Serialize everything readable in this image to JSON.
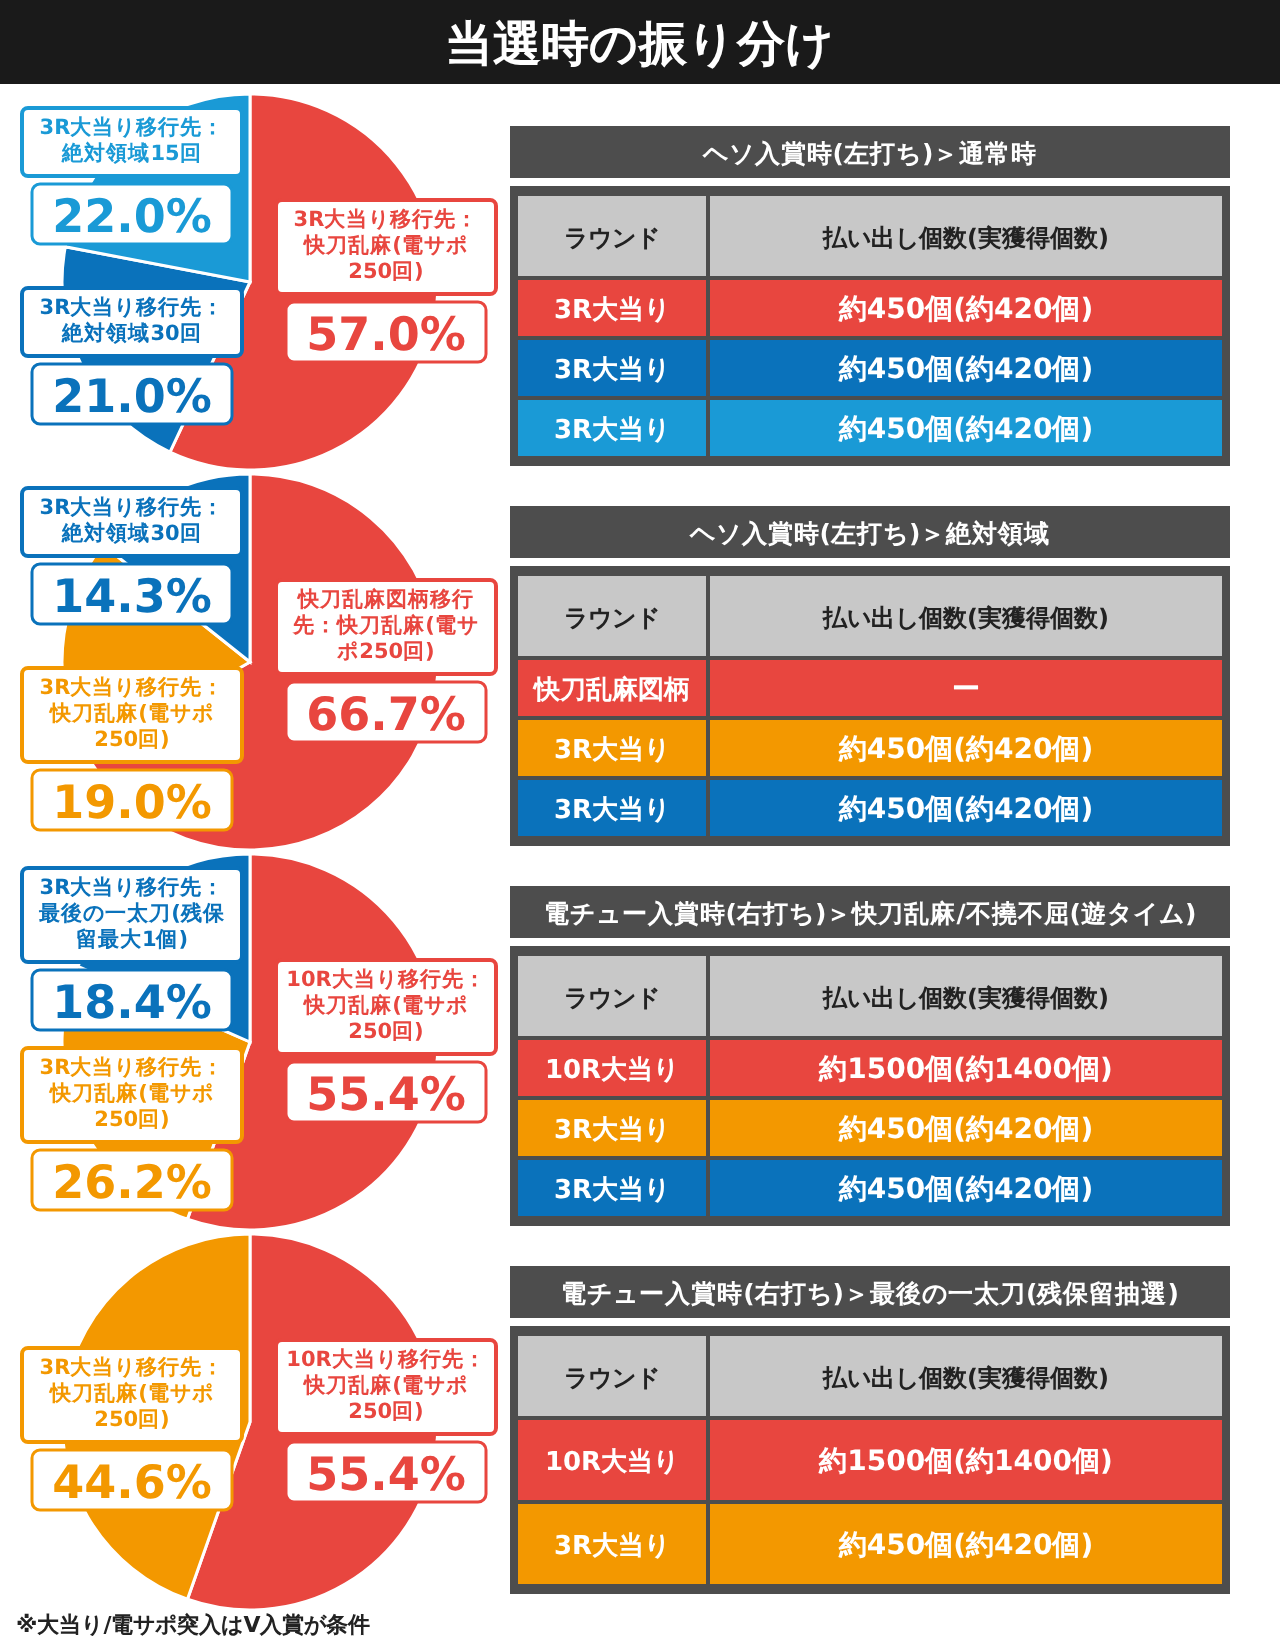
{
  "chart_data": [
    {
      "type": "other",
      "title": "当選時の振り分け",
      "annotations": [
        "※大当り/電サポ突入はV入賞が条件"
      ]
    },
    {
      "type": "pie",
      "categories": [
        "3R大当り移行先：快刀乱麻(電サポ250回)",
        "3R大当り移行先：絶対領域30回",
        "3R大当り移行先：絶対領域15回"
      ],
      "values": [
        57.0,
        21.0,
        22.0
      ],
      "colors": [
        "#e8463f",
        "#0a72bb",
        "#1a9ad6"
      ],
      "value_labels": [
        "57.0%",
        "21.0%",
        "22.0%"
      ]
    },
    {
      "type": "other",
      "title": "ヘソ入賞時(左打ち)＞通常時",
      "annotations": [
        "ラウンド",
        "払い出し個数(実獲得個数)",
        "3R大当り",
        "約450個(約420個)",
        "3R大当り",
        "約450個(約420個)",
        "3R大当り",
        "約450個(約420個)"
      ],
      "colors": [
        "#e8463f",
        "#0a72bb",
        "#1a9ad6"
      ]
    },
    {
      "type": "pie",
      "categories": [
        "快刀乱麻図柄移行先：快刀乱麻(電サポ250回)",
        "3R大当り移行先：快刀乱麻(電サポ250回)",
        "3R大当り移行先：絶対領域30回"
      ],
      "values": [
        66.7,
        19.0,
        14.3
      ],
      "colors": [
        "#e8463f",
        "#f39800",
        "#0a72bb"
      ],
      "value_labels": [
        "66.7%",
        "19.0%",
        "14.3%"
      ]
    },
    {
      "type": "other",
      "title": "ヘソ入賞時(左打ち)＞絶対領域",
      "annotations": [
        "ラウンド",
        "払い出し個数(実獲得個数)",
        "快刀乱麻図柄",
        "ー",
        "3R大当り",
        "約450個(約420個)",
        "3R大当り",
        "約450個(約420個)"
      ],
      "colors": [
        "#e8463f",
        "#f39800",
        "#0a72bb"
      ]
    },
    {
      "type": "pie",
      "categories": [
        "10R大当り移行先：快刀乱麻(電サポ250回)",
        "3R大当り移行先：快刀乱麻(電サポ250回)",
        "3R大当り移行先：最後の一太刀(残保留最大1個)"
      ],
      "values": [
        55.4,
        26.2,
        18.4
      ],
      "colors": [
        "#e8463f",
        "#f39800",
        "#0a72bb"
      ],
      "value_labels": [
        "55.4%",
        "26.2%",
        "18.4%"
      ]
    },
    {
      "type": "other",
      "title": "電チュー入賞時(右打ち)＞快刀乱麻/不撓不屈(遊タイム)",
      "annotations": [
        "ラウンド",
        "払い出し個数(実獲得個数)",
        "10R大当り",
        "約1500個(約1400個)",
        "3R大当り",
        "約450個(約420個)",
        "3R大当り",
        "約450個(約420個)"
      ],
      "colors": [
        "#e8463f",
        "#f39800",
        "#0a72bb"
      ]
    },
    {
      "type": "pie",
      "categories": [
        "10R大当り移行先：快刀乱麻(電サポ250回)",
        "3R大当り移行先：快刀乱麻(電サポ250回)"
      ],
      "values": [
        55.4,
        44.6
      ],
      "colors": [
        "#e8463f",
        "#f39800"
      ],
      "value_labels": [
        "55.4%",
        "44.6%"
      ]
    },
    {
      "type": "other",
      "title": "電チュー入賞時(右打ち)＞最後の一太刀(残保留抽選)",
      "annotations": [
        "ラウンド",
        "払い出し個数(実獲得個数)",
        "10R大当り",
        "約1500個(約1400個)",
        "3R大当り",
        "約450個(約420個)"
      ],
      "colors": [
        "#e8463f",
        "#f39800"
      ]
    }
  ]
}
